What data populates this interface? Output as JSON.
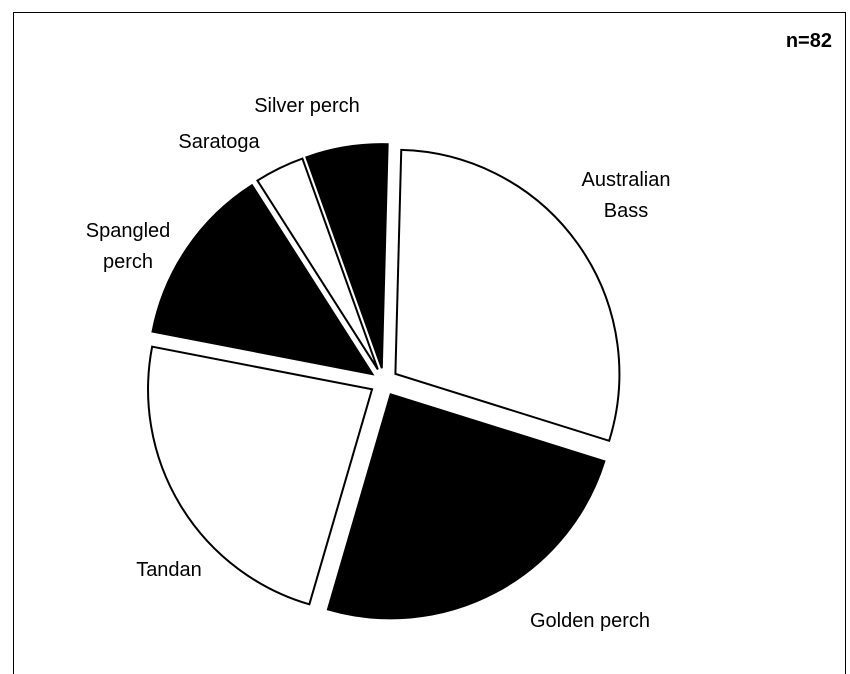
{
  "chart_data": {
    "type": "pie",
    "annotation": "n=82",
    "slices": [
      {
        "label": [
          "Australian",
          "Bass"
        ],
        "value": 30.5,
        "fill": "#ffffff"
      },
      {
        "label": [
          "Golden perch"
        ],
        "value": 25.6,
        "fill": "#000000"
      },
      {
        "label": [
          "Tandan"
        ],
        "value": 24.4,
        "fill": "#ffffff"
      },
      {
        "label": [
          "Spangled",
          "perch"
        ],
        "value": 13.4,
        "fill": "#000000"
      },
      {
        "label": [
          "Saratoga"
        ],
        "value": 3.7,
        "fill": "#ffffff"
      },
      {
        "label": [
          "Silver perch"
        ],
        "value": 6.1,
        "fill": "#000000"
      }
    ]
  }
}
